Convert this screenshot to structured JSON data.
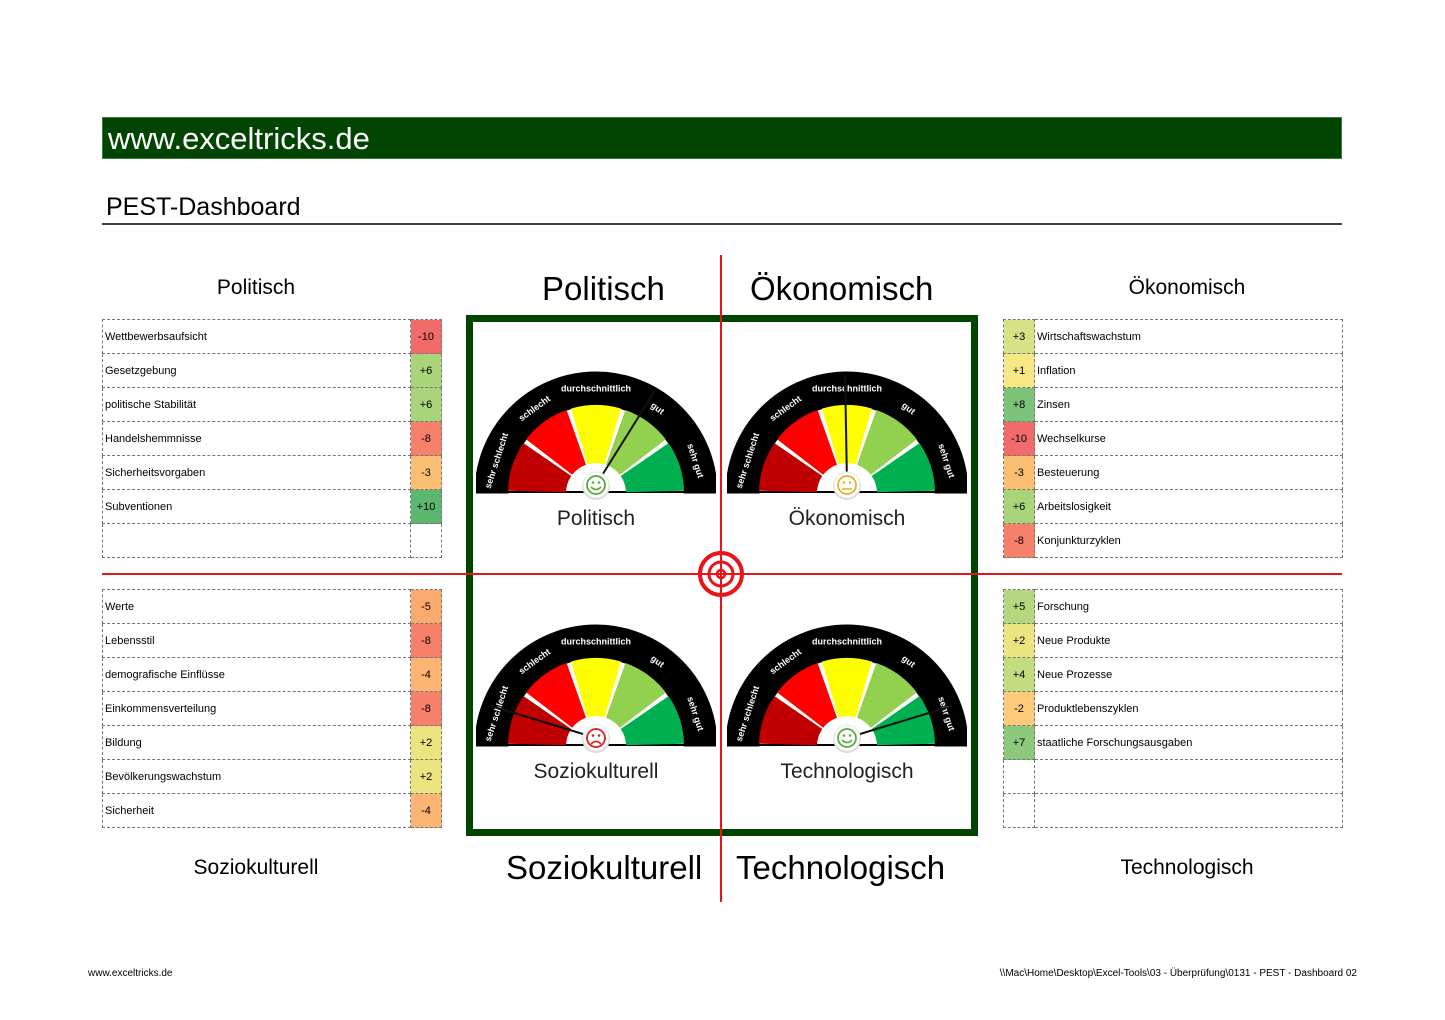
{
  "header": {
    "banner_text": "www.exceltricks.de",
    "banner_color": "#024502",
    "page_title": "PEST-Dashboard"
  },
  "quadrant_labels": {
    "top_left": "Politisch",
    "top_right": "Ökonomisch",
    "bottom_left": "Soziokulturell",
    "bottom_right": "Technologisch"
  },
  "side_labels": {
    "politisch": "Politisch",
    "oekonomisch": "Ökonomisch",
    "soziokulturell": "Soziokulturell",
    "technologisch": "Technologisch"
  },
  "tables": {
    "politisch": [
      {
        "label": "Wettbewerbsaufsicht",
        "value": "-10",
        "color": "#f26b6b"
      },
      {
        "label": "Gesetzgebung",
        "value": "+6",
        "color": "#a9d47a"
      },
      {
        "label": "politische Stabilität",
        "value": "+6",
        "color": "#a9d47a"
      },
      {
        "label": "Handelshemmnisse",
        "value": "-8",
        "color": "#f6806a"
      },
      {
        "label": "Sicherheitsvorgaben",
        "value": "-3",
        "color": "#fbbf74"
      },
      {
        "label": "Subventionen",
        "value": "+10",
        "color": "#5cb870"
      },
      {
        "label": "",
        "value": "",
        "color": "#ffffff"
      }
    ],
    "oekonomisch": [
      {
        "label": "Wirtschaftswachstum",
        "value": "+3",
        "color": "#d6e285"
      },
      {
        "label": "Inflation",
        "value": "+1",
        "color": "#f7e884"
      },
      {
        "label": "Zinsen",
        "value": "+8",
        "color": "#7dc27a"
      },
      {
        "label": "Wechselkurse",
        "value": "-10",
        "color": "#f26b6b"
      },
      {
        "label": "Besteuerung",
        "value": "-3",
        "color": "#fbbf74"
      },
      {
        "label": "Arbeitslosigkeit",
        "value": "+6",
        "color": "#a9d47a"
      },
      {
        "label": "Konjunkturzyklen",
        "value": "-8",
        "color": "#f6806a"
      }
    ],
    "soziokulturell": [
      {
        "label": "Werte",
        "value": "-5",
        "color": "#fbaa6f"
      },
      {
        "label": "Lebensstil",
        "value": "-8",
        "color": "#f6806a"
      },
      {
        "label": "demografische Einflüsse",
        "value": "-4",
        "color": "#fbb472"
      },
      {
        "label": "Einkommensverteilung",
        "value": "-8",
        "color": "#f6806a"
      },
      {
        "label": "Bildung",
        "value": "+2",
        "color": "#ece47f"
      },
      {
        "label": "Bevölkerungswachstum",
        "value": "+2",
        "color": "#ece47f"
      },
      {
        "label": "Sicherheit",
        "value": "-4",
        "color": "#fbb472"
      }
    ],
    "technologisch": [
      {
        "label": "Forschung",
        "value": "+5",
        "color": "#b5d77d"
      },
      {
        "label": "Neue Produkte",
        "value": "+2",
        "color": "#ece47f"
      },
      {
        "label": "Neue  Prozesse",
        "value": "+4",
        "color": "#c3dc80"
      },
      {
        "label": "Produktlebenszyklen",
        "value": "-2",
        "color": "#fcca78"
      },
      {
        "label": "staatliche Forschungsausgaben",
        "value": "+7",
        "color": "#8dc97b"
      },
      {
        "label": "",
        "value": "",
        "color": "#ffffff"
      },
      {
        "label": "",
        "value": "",
        "color": "#ffffff"
      }
    ]
  },
  "gauge_scale": [
    "sehr schlecht",
    "schlecht",
    "durchschnittlich",
    "gut",
    "sehr gut"
  ],
  "gauge_colors": [
    "#c00000",
    "#ff0000",
    "#ffff00",
    "#92d050",
    "#00b050"
  ],
  "gauges": [
    {
      "title": "Politisch",
      "needle_angle_deg": 58,
      "face": "happy",
      "face_color": "#5cab3a"
    },
    {
      "title": "Ökonomisch",
      "needle_angle_deg": 91,
      "face": "neutral",
      "face_color": "#e6b325"
    },
    {
      "title": "Soziokulturell",
      "needle_angle_deg": 163,
      "face": "sad",
      "face_color": "#e02020"
    },
    {
      "title": "Technologisch",
      "needle_angle_deg": 17,
      "face": "happy",
      "face_color": "#5cab3a"
    }
  ],
  "footer": {
    "left": "www.exceltricks.de",
    "right": "\\\\Mac\\Home\\Desktop\\Excel-Tools\\03 - Überprüfung\\0131 - PEST - Dashboard 02"
  }
}
